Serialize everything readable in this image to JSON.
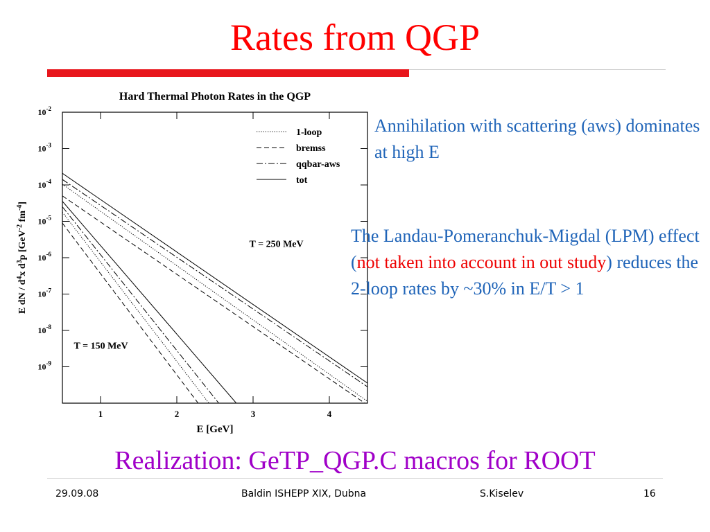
{
  "slide": {
    "title": "Rates from QGP",
    "note1": "Annihilation with scattering (aws) dominates at high E",
    "note2_part1": "The Landau-Pomeranchuk-Migdal (LPM) effect (",
    "note2_red": "not taken into account in out study",
    "note2_part2": ") reduces the 2-loop rates by ~30% in E/T > 1",
    "realization": "Realization: GeTP_QGP.C macros for ROOT",
    "accent_color": "#e8161c",
    "text_blue": "#1f64b8",
    "realization_color": "#a000c8"
  },
  "footer": {
    "date": "29.09.08",
    "event": "Baldin ISHEPP XIX, Dubna",
    "author": "S.Kiselev",
    "page": "16"
  },
  "chart_data": {
    "type": "line",
    "title": "Hard Thermal Photon Rates in the QGP",
    "xlabel": "E  [GeV]",
    "ylabel": "E dN / d4x d3p  [GeV-2 fm-4]",
    "xlim": [
      0.5,
      4.5
    ],
    "ylim_log10": [
      -10,
      -2
    ],
    "log_y": true,
    "x_ticks": [
      "1",
      "2",
      "3",
      "4"
    ],
    "y_ticks": [
      {
        "base": "10",
        "exp": "-2",
        "log": -2
      },
      {
        "base": "10",
        "exp": "-3",
        "log": -3
      },
      {
        "base": "10",
        "exp": "-4",
        "log": -4
      },
      {
        "base": "10",
        "exp": "-5",
        "log": -5
      },
      {
        "base": "10",
        "exp": "-6",
        "log": -6
      },
      {
        "base": "10",
        "exp": "-7",
        "log": -7
      },
      {
        "base": "10",
        "exp": "-8",
        "log": -8
      },
      {
        "base": "10",
        "exp": "-9",
        "log": -9
      }
    ],
    "annotations": [
      {
        "text": "T = 250 MeV",
        "x": 2.95,
        "log_y": -5.7
      },
      {
        "text": "T = 150 MeV",
        "x": 0.65,
        "log_y": -8.5
      }
    ],
    "legend": [
      "1-loop",
      "bremss",
      "qqbar-aws",
      "tot"
    ],
    "legend_position": "top-right",
    "series": [
      {
        "name": "tot",
        "style": "solid",
        "group": "T = 250 MeV",
        "x": [
          0.5,
          4.5
        ],
        "log_y": [
          -3.68,
          -9.45
        ]
      },
      {
        "name": "qqbar-aws",
        "style": "dashdot",
        "group": "T = 250 MeV",
        "x": [
          0.5,
          4.5
        ],
        "log_y": [
          -3.85,
          -9.55
        ]
      },
      {
        "name": "1-loop",
        "style": "dotted",
        "group": "T = 250 MeV",
        "x": [
          0.5,
          4.5
        ],
        "log_y": [
          -3.98,
          -9.95
        ]
      },
      {
        "name": "bremss",
        "style": "dashed",
        "group": "T = 250 MeV",
        "x": [
          0.5,
          4.5
        ],
        "log_y": [
          -4.3,
          -10.05
        ]
      },
      {
        "name": "tot",
        "style": "solid",
        "group": "T = 150 MeV",
        "x": [
          0.5,
          2.78
        ],
        "log_y": [
          -4.45,
          -10.0
        ]
      },
      {
        "name": "qqbar-aws",
        "style": "dashdot",
        "group": "T = 150 MeV",
        "x": [
          0.5,
          2.55
        ],
        "log_y": [
          -4.6,
          -10.0
        ]
      },
      {
        "name": "1-loop",
        "style": "dotted",
        "group": "T = 150 MeV",
        "x": [
          0.5,
          2.42
        ],
        "log_y": [
          -4.75,
          -10.0
        ]
      },
      {
        "name": "bremss",
        "style": "dashed",
        "group": "T = 150 MeV",
        "x": [
          0.5,
          2.28
        ],
        "log_y": [
          -5.05,
          -10.0
        ]
      }
    ]
  }
}
